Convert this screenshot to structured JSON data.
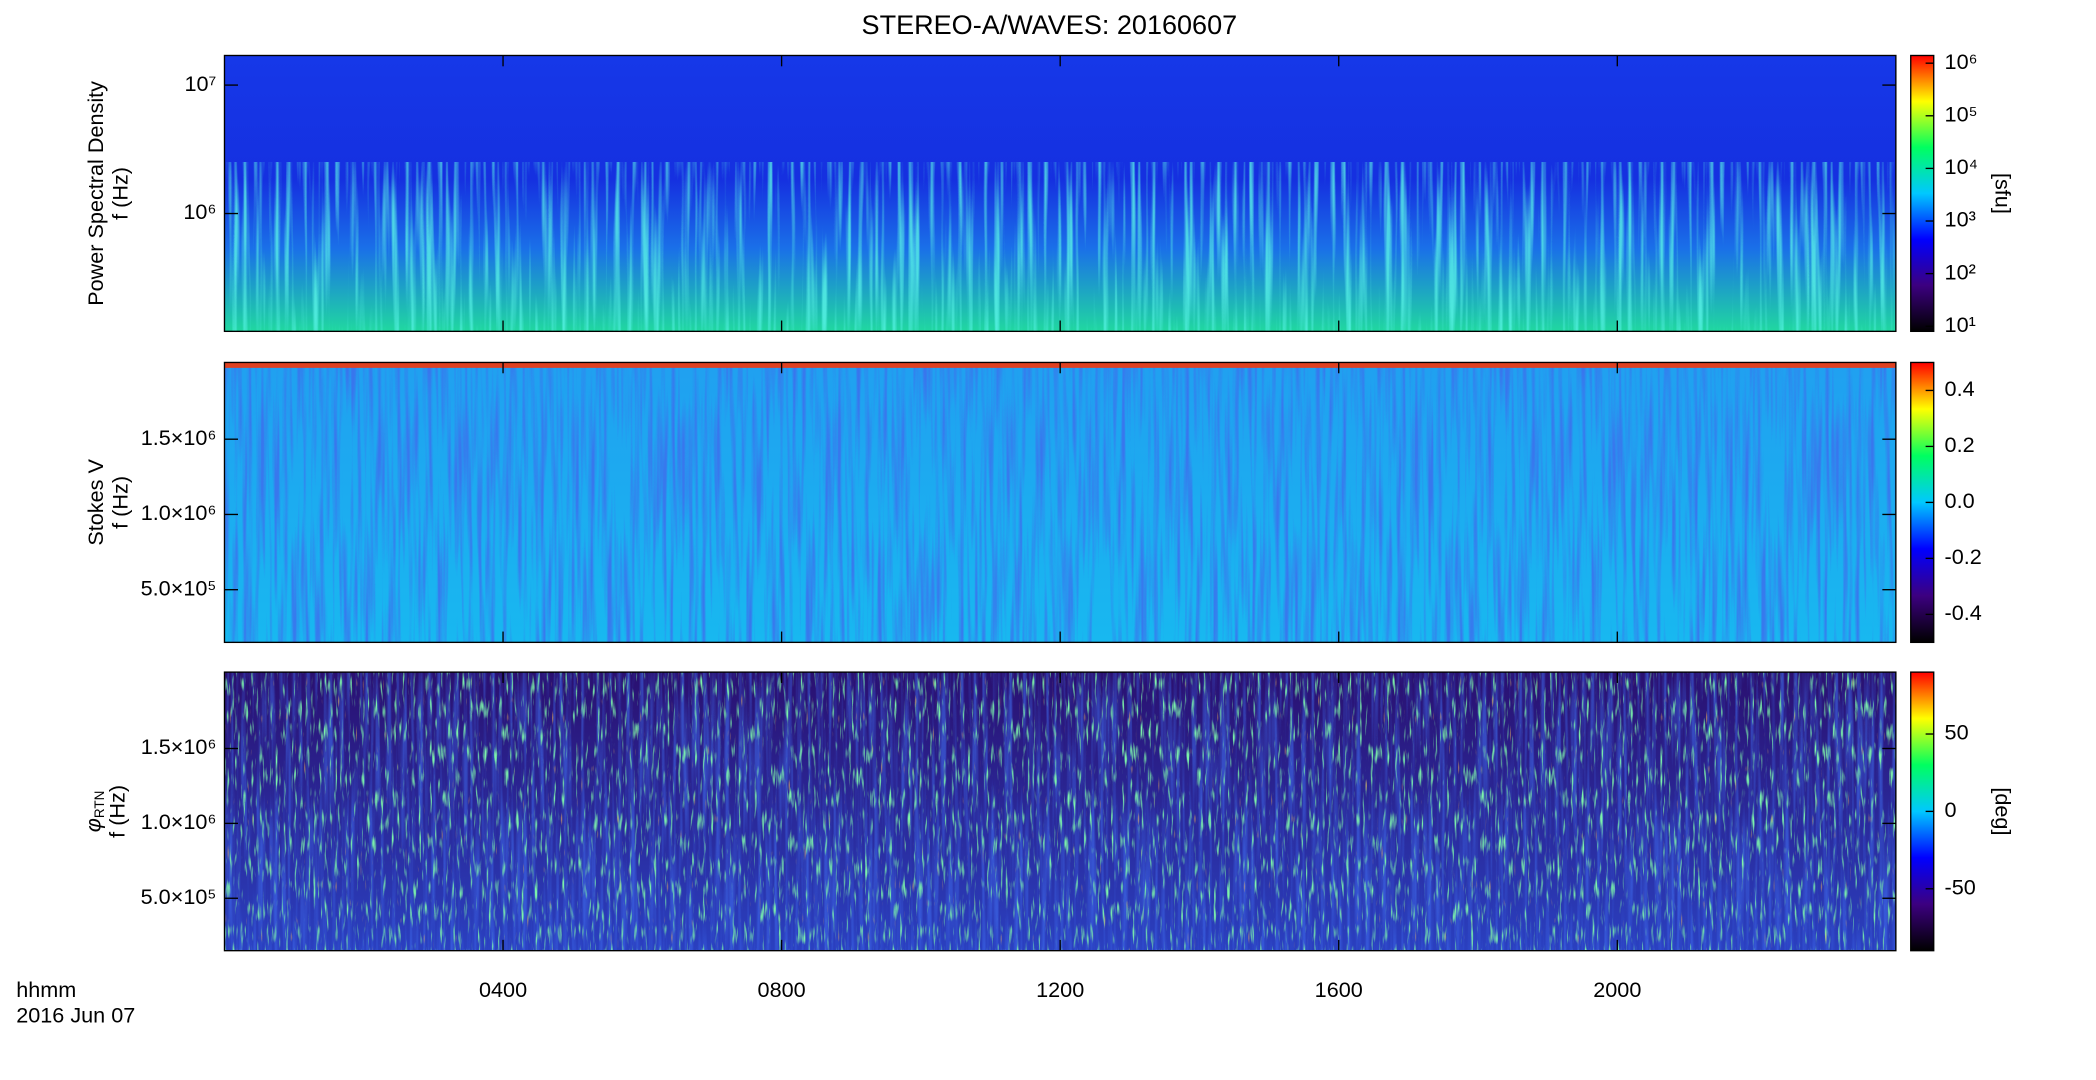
{
  "chart_data": [
    {
      "type": "spectrogram",
      "title": "STEREO-A/WAVES: 20160607",
      "ylabel": [
        "Power Spectral Density",
        "f (Hz)"
      ],
      "ylog": true,
      "ylim": [
        121000,
        17000000
      ],
      "yticks": [
        {
          "value": 1000000,
          "label": "10⁶"
        },
        {
          "value": 10000000,
          "label": "10⁷"
        }
      ],
      "xlim": [
        0,
        24
      ],
      "xticks": [
        4,
        8,
        12,
        16,
        20
      ],
      "colorbar": {
        "log": true,
        "zlim": [
          8,
          1400000
        ],
        "zticks": [
          {
            "value": 10,
            "label": "10¹"
          },
          {
            "value": 100,
            "label": "10²"
          },
          {
            "value": 1000,
            "label": "10³"
          },
          {
            "value": 10000,
            "label": "10⁴"
          },
          {
            "value": 100000,
            "label": "10⁵"
          },
          {
            "value": 1000000,
            "label": "10⁶"
          }
        ],
        "label": "[sfu]",
        "colormap": [
          "#000000",
          "#3c0080",
          "#0000ff",
          "#00c8ff",
          "#00ff60",
          "#ffff00",
          "#ff0000"
        ]
      }
    },
    {
      "type": "spectrogram",
      "ylabel": [
        "Stokes V",
        "f (Hz)"
      ],
      "ylog": false,
      "ylim": [
        150000,
        2010000
      ],
      "yticks": [
        {
          "value": 500000,
          "label": "5.0×10⁵"
        },
        {
          "value": 1000000,
          "label": "1.0×10⁶"
        },
        {
          "value": 1500000,
          "label": "1.5×10⁶"
        }
      ],
      "xlim": [
        0,
        24
      ],
      "xticks": [
        4,
        8,
        12,
        16,
        20
      ],
      "colorbar": {
        "log": false,
        "zlim": [
          -0.5,
          0.5
        ],
        "zticks": [
          {
            "value": -0.4,
            "label": "-0.4"
          },
          {
            "value": -0.2,
            "label": "-0.2"
          },
          {
            "value": 0,
            "label": "0.0"
          },
          0.2,
          0.4
        ],
        "colormap": [
          "#000000",
          "#3c0080",
          "#0000ff",
          "#00c8ff",
          "#00ff60",
          "#ffff00",
          "#ff0000"
        ]
      }
    },
    {
      "type": "spectrogram",
      "ylabel_symbol": "φ",
      "ylabel_sub": "RTN",
      "ylabel": [
        "f (Hz)"
      ],
      "ylog": false,
      "ylim": [
        150000,
        2010000
      ],
      "yticks": [
        {
          "value": 500000,
          "label": "5.0×10⁵"
        },
        {
          "value": 1000000,
          "label": "1.0×10⁶"
        },
        {
          "value": 1500000,
          "label": "1.5×10⁶"
        }
      ],
      "xlim": [
        0,
        24
      ],
      "xticks": [
        {
          "value": 4,
          "label": "0400"
        },
        {
          "value": 8,
          "label": "0800"
        },
        {
          "value": 12,
          "label": "1200"
        },
        {
          "value": 16,
          "label": "1600"
        },
        {
          "value": 20,
          "label": "2000"
        }
      ],
      "xlabel": "hhmm",
      "date": "2016 Jun 07",
      "colorbar": {
        "log": false,
        "zlim": [
          -90,
          90
        ],
        "zticks": [
          -50,
          0,
          50
        ],
        "label": "[deg]",
        "colormap": [
          "#000000",
          "#3c0080",
          "#0000ff",
          "#00c8ff",
          "#00ff60",
          "#ffff00",
          "#ff0000"
        ]
      }
    }
  ]
}
